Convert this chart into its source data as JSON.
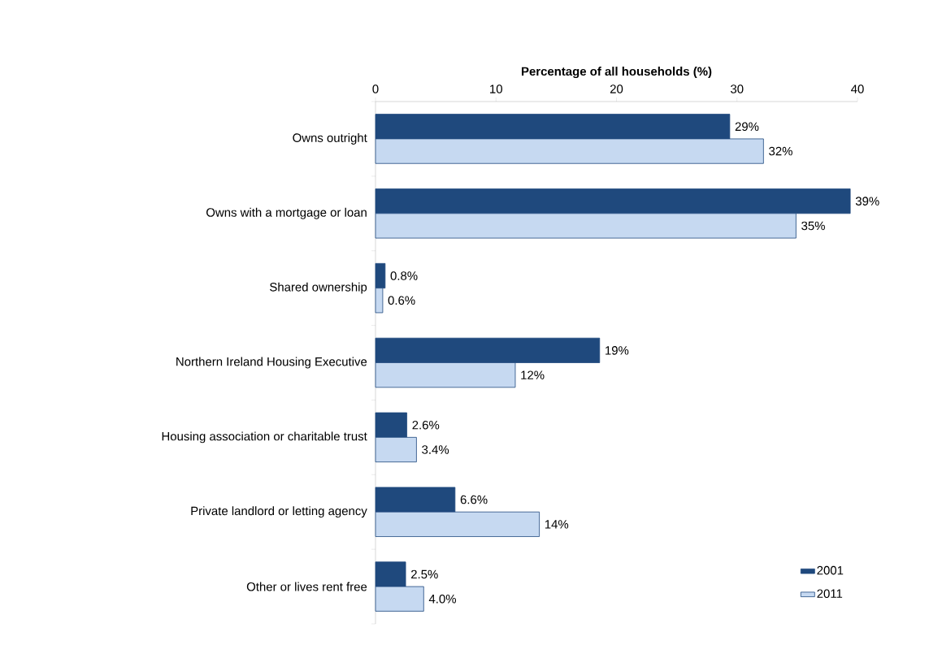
{
  "chart_data": {
    "type": "bar",
    "orientation": "horizontal",
    "xlabel": "Percentage of all households (%)",
    "categories": [
      "Owns outright",
      "Owns with a mortgage or loan",
      "Shared ownership",
      "Northern Ireland Housing Executive",
      "Housing association or charitable trust",
      "Private landlord or letting agency",
      "Other or lives rent free"
    ],
    "series": [
      {
        "name": "2001",
        "color": "#1f497d",
        "values": [
          29.4,
          39.4,
          0.8,
          18.6,
          2.6,
          6.6,
          2.5
        ],
        "value_labels": [
          "29%",
          "39%",
          "0.8%",
          "19%",
          "2.6%",
          "6.6%",
          "2.5%"
        ]
      },
      {
        "name": "2011",
        "color": "#c6d9f1",
        "values": [
          32.2,
          34.9,
          0.6,
          11.6,
          3.4,
          13.6,
          4.0
        ],
        "value_labels": [
          "32%",
          "35%",
          "0.6%",
          "12%",
          "3.4%",
          "14%",
          "4.0%"
        ]
      }
    ],
    "xlim": [
      0,
      40
    ],
    "xticks": [
      0,
      10,
      20,
      30,
      40
    ],
    "grid": false,
    "legend": "bottom right"
  }
}
